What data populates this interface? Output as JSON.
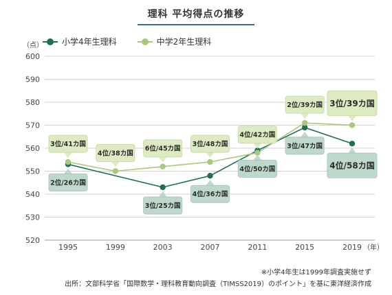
{
  "title": "理科 平均得点の推移",
  "chart_data": {
    "type": "line",
    "x": [
      1995,
      1999,
      2003,
      2007,
      2011,
      2015,
      2019
    ],
    "ylim": [
      520,
      600
    ],
    "yticks": [
      520,
      530,
      540,
      550,
      560,
      570,
      580,
      590,
      600
    ],
    "y_unit": "（点）",
    "x_unit": "（年）",
    "grid": true,
    "legend_position": "top-left",
    "series": [
      {
        "name": "小学4年生理科",
        "color": "#1f6e58",
        "values": [
          553,
          null,
          543,
          548,
          559,
          569,
          562
        ],
        "labels": [
          "2位/26カ国",
          null,
          "3位/25カ国",
          "4位/36カ国",
          "4位/50カ国",
          "3位/47カ国",
          "4位/58カ国"
        ]
      },
      {
        "name": "中学2年生理科",
        "color": "#a6c97a",
        "values": [
          554,
          550,
          552,
          554,
          558,
          571,
          570
        ],
        "labels": [
          "3位/41カ国",
          "4位/38カ国",
          "6位/45カ国",
          "3位/48カ国",
          "4位/42カ国",
          "2位/39カ国",
          "3位/39カ国"
        ]
      }
    ]
  },
  "footnotes": [
    "※小学4年生は1999年調査実施せず",
    "出所：文部科学省「国際数学・理科教育動向調査（TIMSS2019）のポイント」を基に東洋経済作成"
  ]
}
